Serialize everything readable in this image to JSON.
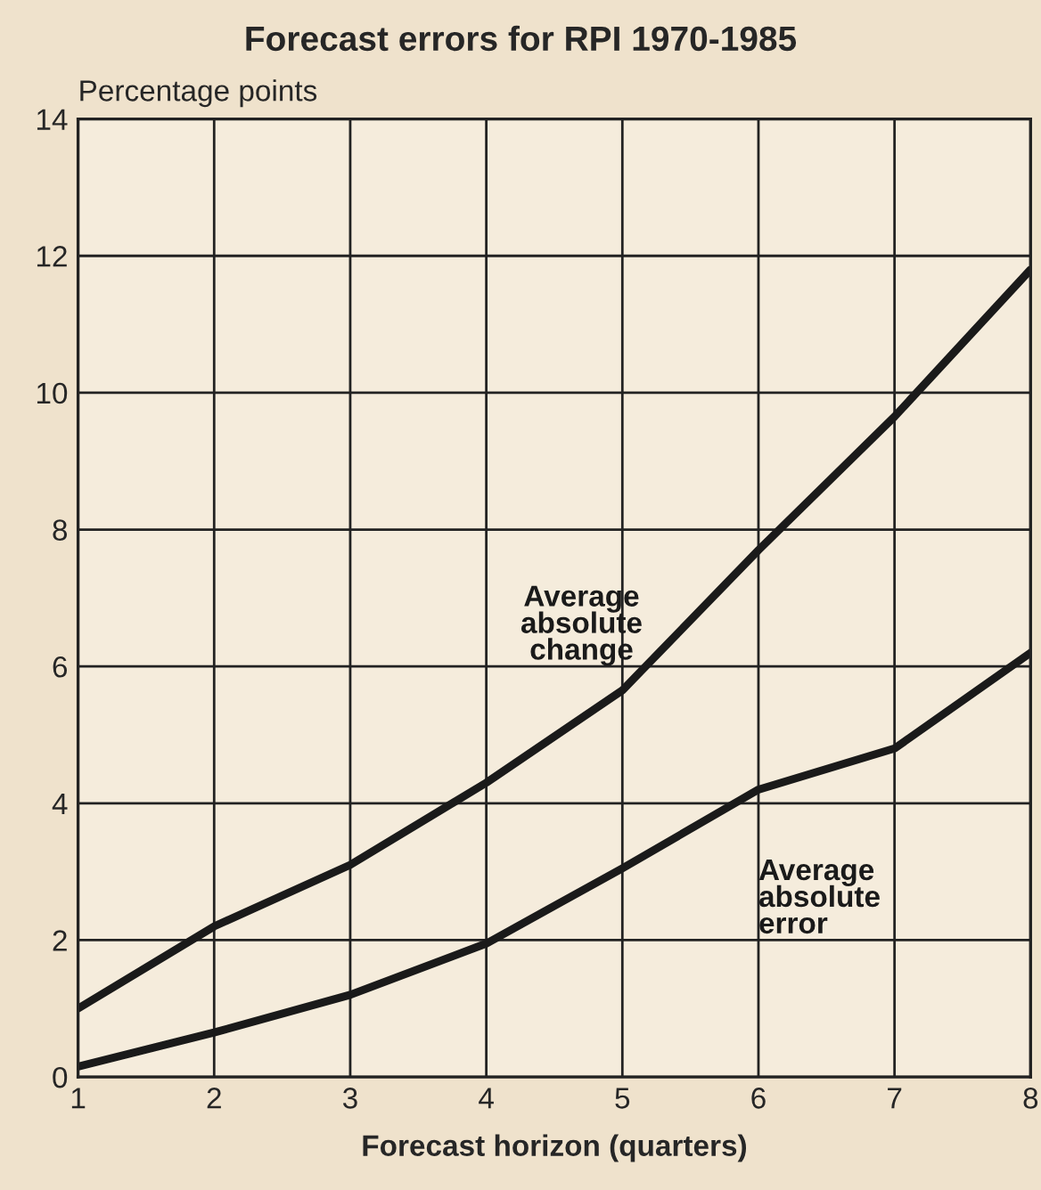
{
  "chart_data": {
    "type": "line",
    "title": "Forecast errors for RPI 1970-1985",
    "xlabel": "Forecast horizon (quarters)",
    "ylabel": "Percentage points",
    "x": [
      1,
      2,
      3,
      4,
      5,
      6,
      7,
      8
    ],
    "series": [
      {
        "name": "Average\nabsolute\nchange",
        "color": "#1a1a1a",
        "values": [
          1.0,
          2.2,
          3.1,
          4.3,
          5.65,
          7.7,
          9.65,
          11.8
        ]
      },
      {
        "name": "Average\nabsolute\nerror",
        "color": "#1a1a1a",
        "values": [
          0.15,
          0.65,
          1.2,
          1.95,
          3.05,
          4.2,
          4.8,
          6.2
        ]
      }
    ],
    "xlim": [
      1,
      8
    ],
    "xticks": [
      1,
      2,
      3,
      4,
      5,
      6,
      7,
      8
    ],
    "ylim": [
      0,
      14
    ],
    "yticks": [
      0,
      2,
      4,
      6,
      8,
      10,
      12,
      14
    ],
    "grid": true,
    "legend": false,
    "marker": "none",
    "line_style": "solid"
  }
}
